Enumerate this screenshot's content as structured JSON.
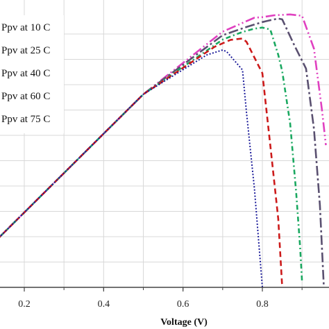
{
  "chart_data": {
    "type": "line",
    "title": "",
    "xlabel": "Voltage (V)",
    "ylabel": "",
    "xlim": [
      0.13,
      0.96
    ],
    "ylim": [
      0,
      1.0
    ],
    "x_ticks": [
      "0.2",
      "0.4",
      "0.6",
      "0.8"
    ],
    "x_tick_values": [
      0.2,
      0.4,
      0.6,
      0.8
    ],
    "grid": true,
    "legend_placement": "top-left",
    "series": [
      {
        "name": "Ppv at 10 C",
        "color": "#e040c0",
        "dash": "dash-dot-dot",
        "points": [
          [
            0.13,
            0.173
          ],
          [
            0.3,
            0.418
          ],
          [
            0.5,
            0.706
          ],
          [
            0.7,
            0.935
          ],
          [
            0.78,
            0.986
          ],
          [
            0.8,
            0.988
          ],
          [
            0.83,
            0.995
          ],
          [
            0.87,
            0.998
          ],
          [
            0.9,
            0.993
          ],
          [
            0.93,
            0.873
          ],
          [
            0.95,
            0.65
          ],
          [
            0.96,
            0.52
          ]
        ]
      },
      {
        "name": "Ppv at 25 C",
        "color": "#5a5070",
        "dash": "dash-dot",
        "points": [
          [
            0.13,
            0.173
          ],
          [
            0.3,
            0.418
          ],
          [
            0.5,
            0.706
          ],
          [
            0.7,
            0.922
          ],
          [
            0.76,
            0.952
          ],
          [
            0.8,
            0.97
          ],
          [
            0.82,
            0.977
          ],
          [
            0.84,
            0.983
          ],
          [
            0.85,
            0.98
          ],
          [
            0.88,
            0.887
          ],
          [
            0.91,
            0.8
          ],
          [
            0.93,
            0.58
          ],
          [
            0.945,
            0.3
          ],
          [
            0.955,
            0.0
          ]
        ]
      },
      {
        "name": "Ppv at 40 C",
        "color": "#1aa860",
        "dash": "dash-dot-fine",
        "points": [
          [
            0.13,
            0.173
          ],
          [
            0.3,
            0.418
          ],
          [
            0.5,
            0.706
          ],
          [
            0.7,
            0.906
          ],
          [
            0.75,
            0.934
          ],
          [
            0.78,
            0.946
          ],
          [
            0.8,
            0.95
          ],
          [
            0.82,
            0.943
          ],
          [
            0.84,
            0.85
          ],
          [
            0.85,
            0.79
          ],
          [
            0.87,
            0.6
          ],
          [
            0.885,
            0.35
          ],
          [
            0.895,
            0.15
          ],
          [
            0.9,
            0.02
          ]
        ]
      },
      {
        "name": "Ppv at 60 C",
        "color": "#cc1a1a",
        "dash": "dash",
        "points": [
          [
            0.13,
            0.173
          ],
          [
            0.3,
            0.418
          ],
          [
            0.5,
            0.706
          ],
          [
            0.68,
            0.88
          ],
          [
            0.72,
            0.905
          ],
          [
            0.75,
            0.91
          ],
          [
            0.76,
            0.898
          ],
          [
            0.78,
            0.84
          ],
          [
            0.8,
            0.783
          ],
          [
            0.82,
            0.52
          ],
          [
            0.84,
            0.25
          ],
          [
            0.85,
            0.0
          ]
        ]
      },
      {
        "name": "Ppv at 75 C",
        "color": "#1a1a99",
        "dash": "dot",
        "points": [
          [
            0.13,
            0.173
          ],
          [
            0.3,
            0.418
          ],
          [
            0.5,
            0.706
          ],
          [
            0.66,
            0.85
          ],
          [
            0.7,
            0.868
          ],
          [
            0.71,
            0.862
          ],
          [
            0.75,
            0.795
          ],
          [
            0.76,
            0.64
          ],
          [
            0.78,
            0.36
          ],
          [
            0.79,
            0.18
          ],
          [
            0.8,
            0.0
          ]
        ]
      }
    ]
  }
}
